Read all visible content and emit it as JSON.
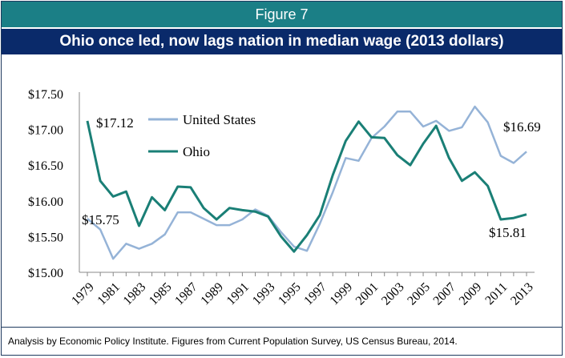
{
  "figure_label": "Figure 7",
  "title": "Ohio once led, now lags nation in median wage (2013 dollars)",
  "footer": "Analysis  by Economic Policy Institute.  Figures from Current Population Survey, US Census Bureau, 2014.",
  "colors": {
    "us": "#95b3d7",
    "ohio": "#1a7f76",
    "figure_bar": "#1b7f86",
    "title_bar": "#0a2a6a"
  },
  "chart_data": {
    "type": "line",
    "title": "Ohio once led, now lags nation in median wage (2013 dollars)",
    "x": [
      1979,
      1980,
      1981,
      1982,
      1983,
      1984,
      1985,
      1986,
      1987,
      1988,
      1989,
      1990,
      1991,
      1992,
      1993,
      1994,
      1995,
      1996,
      1997,
      1998,
      1999,
      2000,
      2001,
      2002,
      2003,
      2004,
      2005,
      2006,
      2007,
      2008,
      2009,
      2010,
      2011,
      2012,
      2013
    ],
    "x_tick_labels": [
      "1979",
      "1981",
      "1983",
      "1985",
      "1987",
      "1989",
      "1991",
      "1993",
      "1995",
      "1997",
      "1999",
      "2001",
      "2003",
      "2005",
      "2007",
      "2009",
      "2011",
      "2013"
    ],
    "y_tick_labels": [
      "$15.00",
      "$15.50",
      "$16.00",
      "$16.50",
      "$17.00",
      "$17.50"
    ],
    "ylim": [
      15.0,
      17.5
    ],
    "grid": false,
    "legend_position": "top-left",
    "series": [
      {
        "name": "United States",
        "values": [
          15.75,
          15.6,
          15.19,
          15.4,
          15.33,
          15.4,
          15.53,
          15.84,
          15.84,
          15.75,
          15.66,
          15.66,
          15.74,
          15.88,
          15.79,
          15.56,
          15.36,
          15.3,
          15.68,
          16.12,
          16.6,
          16.56,
          16.88,
          17.04,
          17.25,
          17.25,
          17.04,
          17.12,
          16.98,
          17.03,
          17.32,
          17.1,
          16.63,
          16.53,
          16.69
        ]
      },
      {
        "name": "Ohio",
        "values": [
          17.12,
          16.28,
          16.06,
          16.13,
          15.65,
          16.05,
          15.87,
          16.2,
          16.19,
          15.9,
          15.74,
          15.9,
          15.87,
          15.85,
          15.78,
          15.5,
          15.29,
          15.52,
          15.8,
          16.36,
          16.84,
          17.11,
          16.89,
          16.88,
          16.64,
          16.5,
          16.8,
          17.05,
          16.6,
          16.28,
          16.4,
          16.21,
          15.74,
          15.76,
          15.81
        ]
      }
    ],
    "annotations": [
      "$17.12",
      "$15.75",
      "$16.69",
      "$15.81"
    ]
  }
}
